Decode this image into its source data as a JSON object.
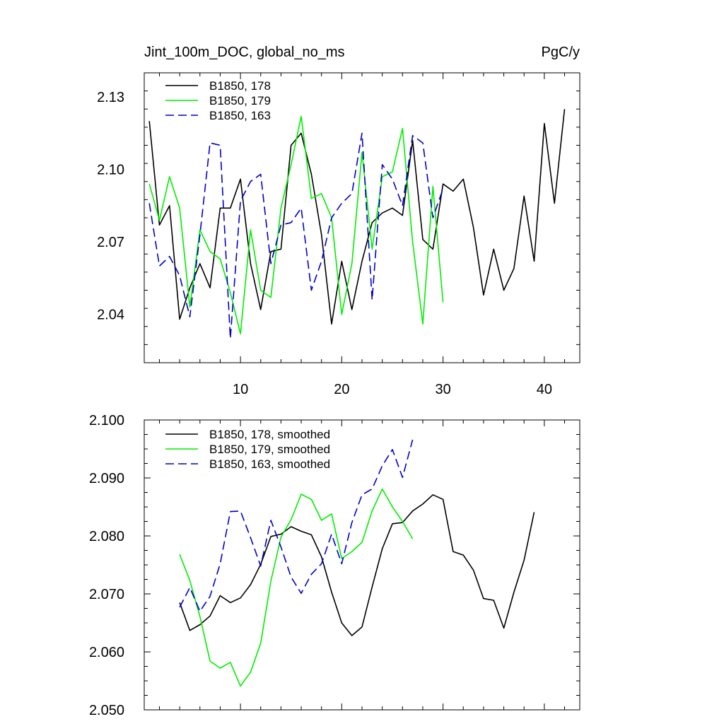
{
  "chart_data": [
    {
      "type": "line",
      "title_left": "Jint_100m_DOC, global_no_ms",
      "title_right": "PgC/y",
      "xlim": [
        0.5,
        43.5
      ],
      "ylim": [
        2.02,
        2.14
      ],
      "x_ticks": [
        10,
        20,
        30,
        40
      ],
      "x_tick_labels": [
        "10",
        "20",
        "30",
        "40"
      ],
      "y_ticks": [
        2.04,
        2.07,
        2.1,
        2.13
      ],
      "y_tick_labels": [
        "2.04",
        "2.07",
        "2.10",
        "2.13"
      ],
      "legend_position": "top-left",
      "series": [
        {
          "name": "B1850, 178",
          "color": "#000000",
          "dash": "solid",
          "x": [
            1,
            2,
            3,
            4,
            5,
            6,
            7,
            8,
            9,
            10,
            11,
            12,
            13,
            14,
            15,
            16,
            17,
            18,
            19,
            20,
            21,
            22,
            23,
            24,
            25,
            26,
            27,
            28,
            29,
            30,
            31,
            32,
            33,
            34,
            35,
            36,
            37,
            38,
            39,
            40,
            41,
            42
          ],
          "y": [
            2.12,
            2.077,
            2.085,
            2.038,
            2.051,
            2.061,
            2.051,
            2.084,
            2.084,
            2.096,
            2.061,
            2.042,
            2.066,
            2.067,
            2.11,
            2.115,
            2.098,
            2.073,
            2.036,
            2.062,
            2.042,
            2.062,
            2.078,
            2.082,
            2.084,
            2.081,
            2.112,
            2.071,
            2.067,
            2.094,
            2.091,
            2.096,
            2.076,
            2.048,
            2.067,
            2.05,
            2.059,
            2.089,
            2.062,
            2.119,
            2.086,
            2.125
          ]
        },
        {
          "name": "B1850, 179",
          "color": "#00ee00",
          "dash": "solid",
          "x": [
            1,
            2,
            3,
            4,
            5,
            6,
            7,
            8,
            9,
            10,
            11,
            12,
            13,
            14,
            15,
            16,
            17,
            18,
            19,
            20,
            21,
            22,
            23,
            24,
            25,
            26,
            27,
            28,
            29,
            30
          ],
          "y": [
            2.094,
            2.079,
            2.097,
            2.084,
            2.043,
            2.075,
            2.066,
            2.063,
            2.049,
            2.032,
            2.075,
            2.05,
            2.047,
            2.084,
            2.102,
            2.122,
            2.088,
            2.09,
            2.08,
            2.04,
            2.061,
            2.107,
            2.067,
            2.097,
            2.099,
            2.117,
            2.07,
            2.036,
            2.093,
            2.045
          ]
        },
        {
          "name": "B1850, 163",
          "color": "#0000cc",
          "dash": "dashed",
          "x": [
            1,
            2,
            3,
            4,
            5,
            6,
            7,
            8,
            9,
            10,
            11,
            12,
            13,
            14,
            15,
            16,
            17,
            18,
            19,
            20,
            21,
            22,
            23,
            24,
            25,
            26,
            27,
            28,
            29,
            30
          ],
          "y": [
            2.086,
            2.06,
            2.064,
            2.056,
            2.039,
            2.073,
            2.111,
            2.11,
            2.03,
            2.087,
            2.095,
            2.098,
            2.061,
            2.077,
            2.078,
            2.084,
            2.05,
            2.062,
            2.08,
            2.086,
            2.09,
            2.115,
            2.046,
            2.102,
            2.096,
            2.085,
            2.114,
            2.111,
            2.08,
            2.092
          ]
        }
      ]
    },
    {
      "type": "line",
      "xlim": [
        0.5,
        43.5
      ],
      "ylim": [
        2.05,
        2.1
      ],
      "x_ticks": [
        10,
        20,
        30,
        40
      ],
      "y_ticks": [
        2.05,
        2.06,
        2.07,
        2.08,
        2.09,
        2.1
      ],
      "y_tick_labels": [
        "2.050",
        "2.060",
        "2.070",
        "2.080",
        "2.090",
        "2.100"
      ],
      "legend_position": "top-left",
      "series": [
        {
          "name": "B1850, 178, smoothed",
          "color": "#000000",
          "dash": "solid",
          "x": [
            4,
            5,
            6,
            7,
            8,
            9,
            10,
            11,
            12,
            13,
            14,
            15,
            16,
            17,
            18,
            19,
            20,
            21,
            22,
            23,
            24,
            25,
            26,
            27,
            28,
            29,
            30,
            31,
            32,
            33,
            34,
            35,
            36,
            37,
            38,
            39
          ],
          "y": [
            2.0685,
            2.0637,
            2.0647,
            2.0662,
            2.0697,
            2.0685,
            2.0693,
            2.0716,
            2.0751,
            2.0799,
            2.0803,
            2.0816,
            2.0808,
            2.0802,
            2.0764,
            2.0703,
            2.065,
            2.0628,
            2.0643,
            2.0712,
            2.0778,
            2.0821,
            2.0823,
            2.0843,
            2.0855,
            2.0871,
            2.0863,
            2.0773,
            2.0767,
            2.0741,
            2.0692,
            2.0689,
            2.0641,
            2.0703,
            2.0758,
            2.0841
          ]
        },
        {
          "name": "B1850, 179, smoothed",
          "color": "#00ee00",
          "dash": "solid",
          "x": [
            4,
            5,
            6,
            7,
            8,
            9,
            10,
            11,
            12,
            13,
            14,
            15,
            16,
            17,
            18,
            19,
            20,
            21,
            22,
            23,
            24,
            25,
            26,
            27
          ],
          "y": [
            2.0768,
            2.0723,
            2.0661,
            2.0584,
            2.0572,
            2.0582,
            2.0541,
            2.0565,
            2.0615,
            2.0722,
            2.0798,
            2.0828,
            2.0872,
            2.0863,
            2.0827,
            2.0838,
            2.0761,
            2.0773,
            2.0789,
            2.0843,
            2.0881,
            2.085,
            2.0825,
            2.0795
          ]
        },
        {
          "name": "B1850, 163, smoothed",
          "color": "#0000cc",
          "dash": "dashed",
          "x": [
            4,
            5,
            6,
            7,
            8,
            9,
            10,
            11,
            12,
            13,
            14,
            15,
            16,
            17,
            18,
            19,
            20,
            21,
            22,
            23,
            24,
            25,
            26,
            27
          ],
          "y": [
            2.0677,
            2.0711,
            2.067,
            2.0696,
            2.0752,
            2.0842,
            2.0843,
            2.0797,
            2.0748,
            2.0827,
            2.0781,
            2.0729,
            2.0701,
            2.0734,
            2.0752,
            2.0803,
            2.0752,
            2.0823,
            2.0871,
            2.0881,
            2.0921,
            2.0949,
            2.0901,
            2.0966
          ]
        }
      ]
    }
  ]
}
